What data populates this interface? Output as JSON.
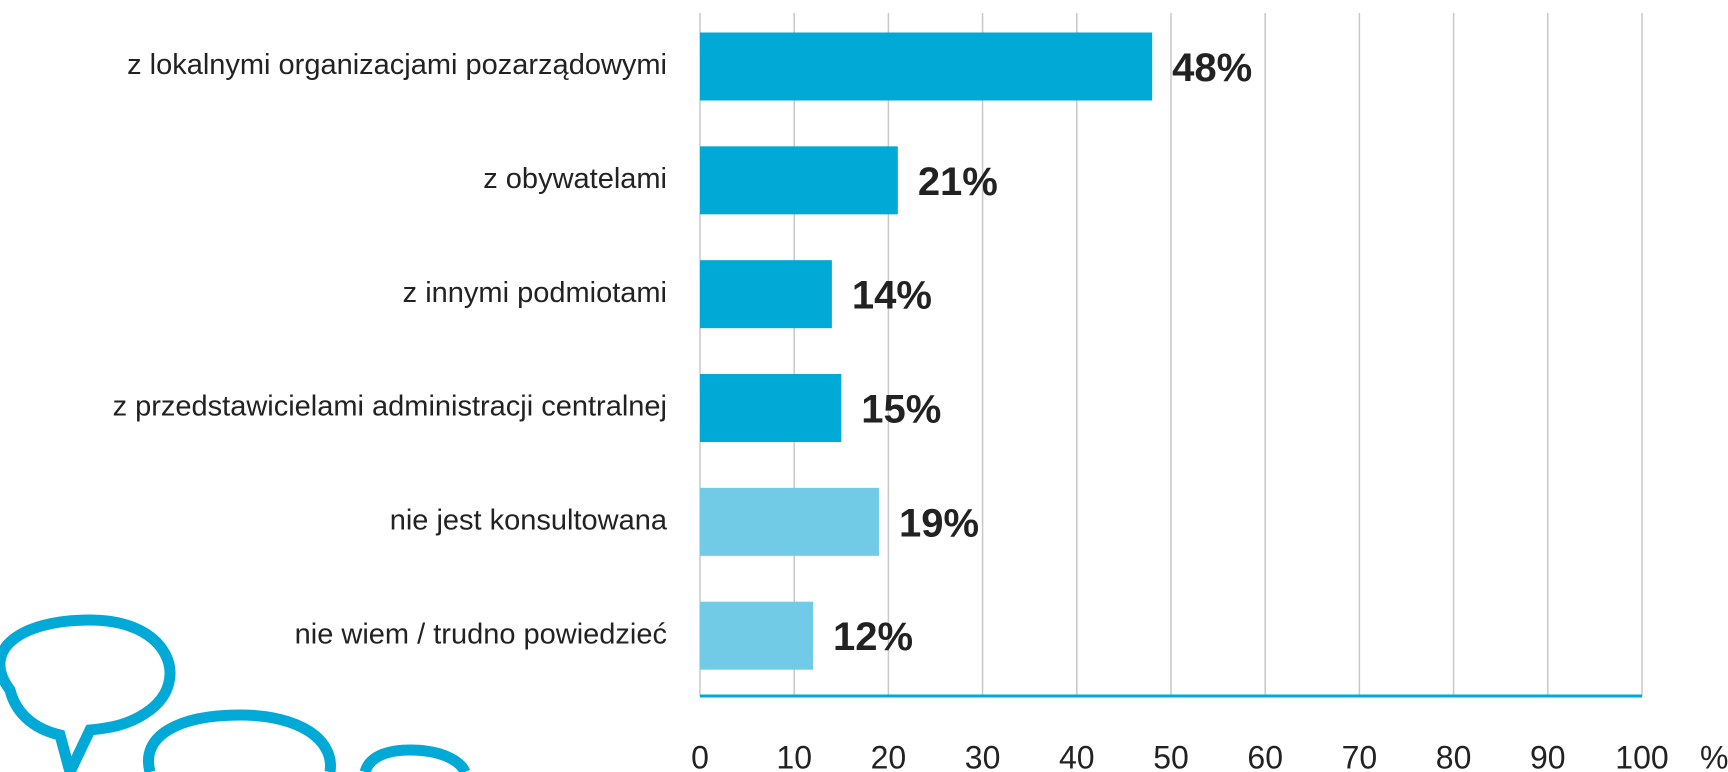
{
  "chart_data": {
    "type": "barh",
    "categories": [
      "z lokalnymi organizacjami pozarządowymi",
      "z obywatelami",
      "z innymi podmiotami",
      "z przedstawicielami administracji centralnej",
      "nie jest konsultowana",
      "nie wiem / trudno powiedzieć"
    ],
    "values": [
      48,
      21,
      14,
      15,
      19,
      12
    ],
    "value_labels": [
      "48%",
      "21%",
      "14%",
      "15%",
      "19%",
      "12%"
    ],
    "colors": [
      "#00a9d6",
      "#00a9d6",
      "#00a9d6",
      "#00a9d6",
      "#72cbe6",
      "#72cbe6"
    ],
    "xlim": [
      0,
      100
    ],
    "xticks": [
      0,
      10,
      20,
      30,
      40,
      50,
      60,
      70,
      80,
      90,
      100
    ],
    "xlabel": "%",
    "grid": true
  }
}
